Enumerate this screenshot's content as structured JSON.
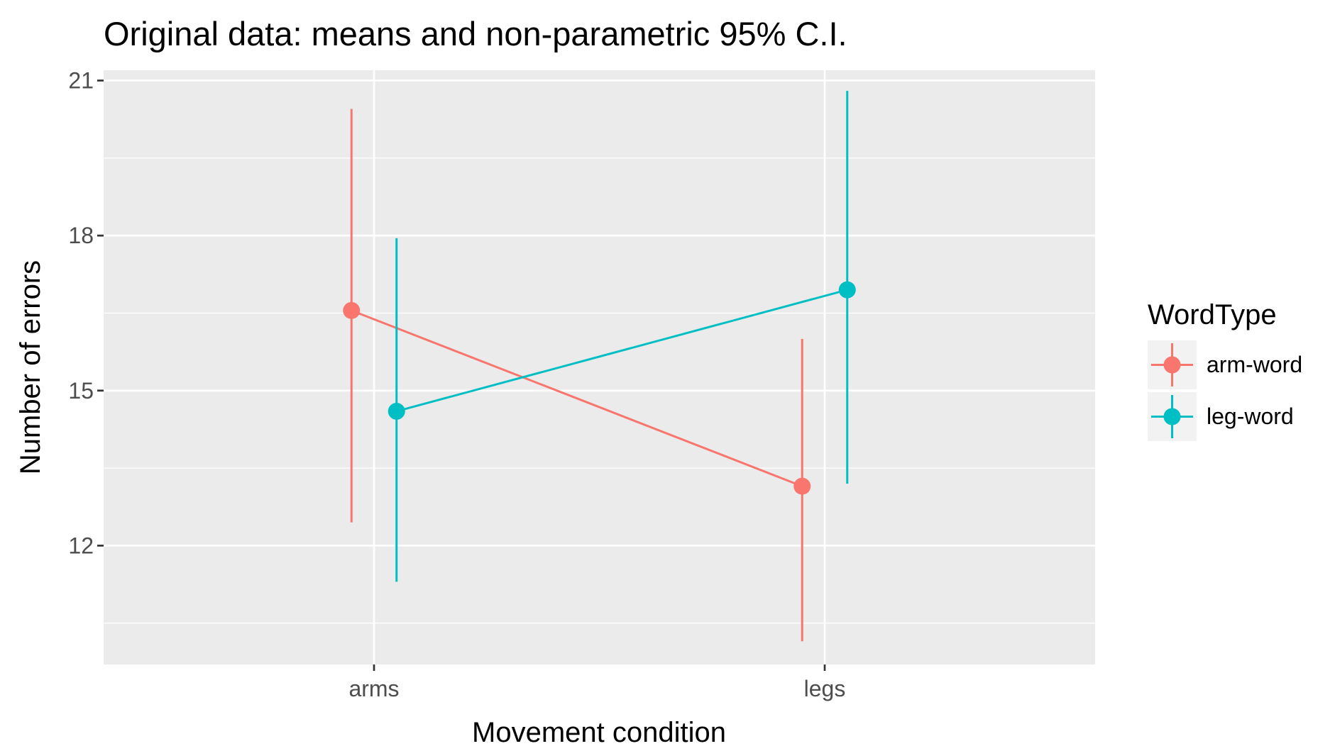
{
  "chart_data": {
    "type": "line",
    "title": "Original data: means and non-parametric 95% C.I.",
    "xlabel": "Movement condition",
    "ylabel": "Number of errors",
    "categories": [
      "arms",
      "legs"
    ],
    "ylim": [
      9.7,
      21.2
    ],
    "yticks": [
      12,
      15,
      18,
      21
    ],
    "ytick_labels": [
      "12",
      "15",
      "18",
      "21"
    ],
    "grid": true,
    "legend": {
      "title": "WordType",
      "placement": "right"
    },
    "series": [
      {
        "name": "arm-word",
        "color": "#F8766D",
        "values": [
          16.55,
          13.15
        ],
        "ci_low": [
          12.45,
          10.15
        ],
        "ci_high": [
          20.45,
          16.0
        ]
      },
      {
        "name": "leg-word",
        "color": "#00BFC4",
        "values": [
          14.6,
          16.95
        ],
        "ci_low": [
          11.3,
          13.2
        ],
        "ci_high": [
          17.95,
          20.8
        ]
      }
    ]
  }
}
